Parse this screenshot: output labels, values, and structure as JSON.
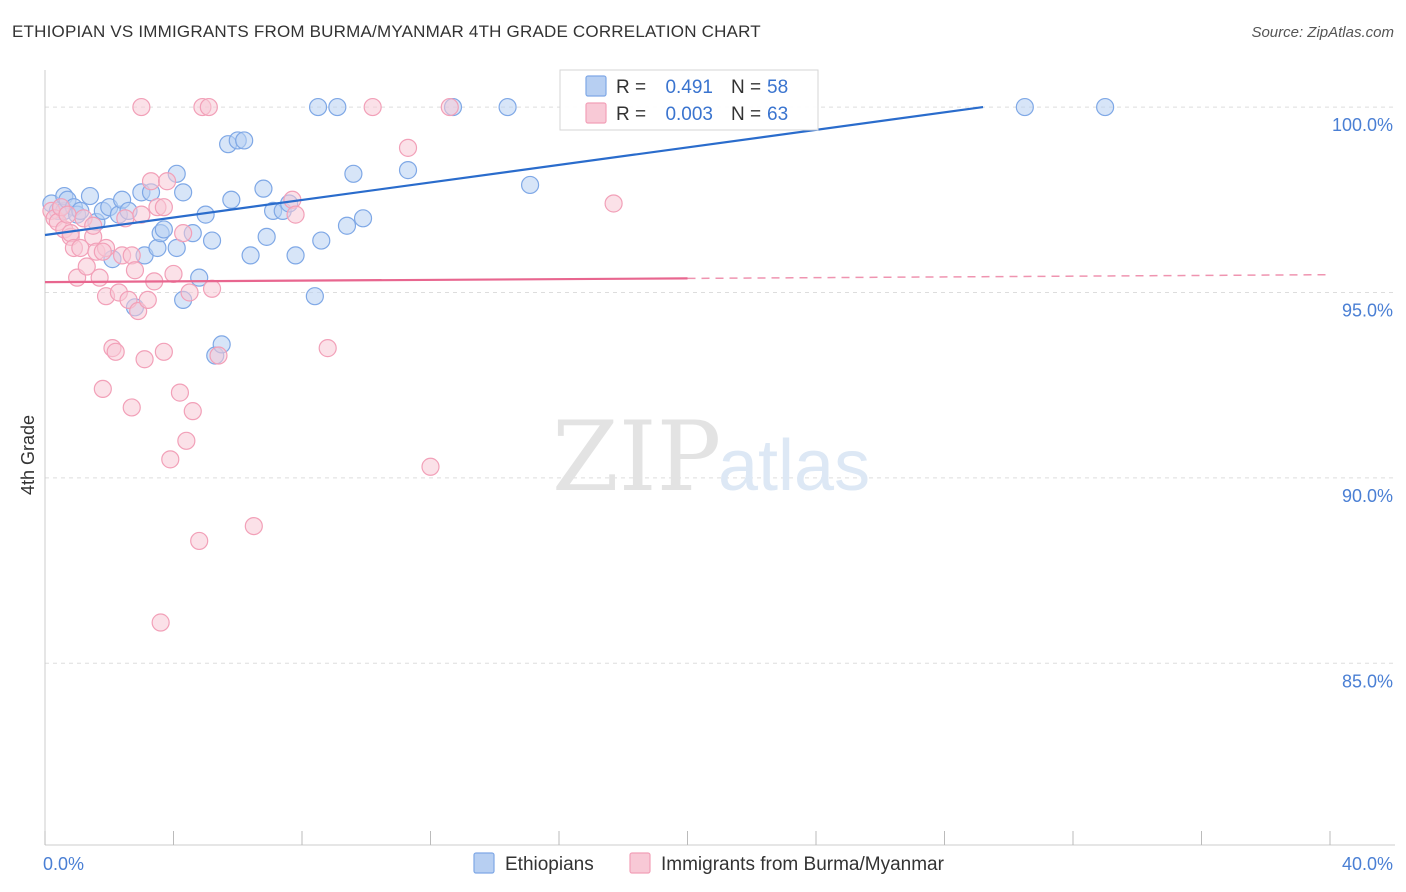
{
  "title": "ETHIOPIAN VS IMMIGRANTS FROM BURMA/MYANMAR 4TH GRADE CORRELATION CHART",
  "source": "Source: ZipAtlas.com",
  "watermark": {
    "zip": "ZIP",
    "atlas": "atlas"
  },
  "chart_data": {
    "type": "scatter",
    "xlabel": "",
    "ylabel": "4th Grade",
    "xlim": [
      0,
      40
    ],
    "ylim": [
      80.1,
      101
    ],
    "x_tick_labels": [
      "0.0%",
      "40.0%"
    ],
    "y_ticks": [
      {
        "value": 100,
        "label": "100.0%"
      },
      {
        "value": 95,
        "label": "95.0%"
      },
      {
        "value": 90,
        "label": "90.0%"
      },
      {
        "value": 85,
        "label": "85.0%"
      }
    ],
    "legend": {
      "entries": [
        {
          "r_label": "R =",
          "r_value": "0.491",
          "n_label": "N =",
          "n_value": "58"
        },
        {
          "r_label": "R =",
          "r_value": "0.003",
          "n_label": "N =",
          "n_value": "63"
        }
      ]
    },
    "series": [
      {
        "name": "Ethiopians",
        "color": "#7fa8e6",
        "fill": "#b7cff2",
        "line_color": "#2a6ccc",
        "trend": {
          "x0": 0.0,
          "y0": 96.55,
          "x1": 29.2,
          "y1": 100.0,
          "dashed_to": null
        },
        "points": [
          [
            0.2,
            97.4
          ],
          [
            0.4,
            97.2
          ],
          [
            0.5,
            97.3
          ],
          [
            0.6,
            97.2
          ],
          [
            0.6,
            97.6
          ],
          [
            0.7,
            97.5
          ],
          [
            0.9,
            97.3
          ],
          [
            1.0,
            97.1
          ],
          [
            1.1,
            97.2
          ],
          [
            1.4,
            97.6
          ],
          [
            1.6,
            96.9
          ],
          [
            1.8,
            97.2
          ],
          [
            2.0,
            97.3
          ],
          [
            2.1,
            95.9
          ],
          [
            2.3,
            97.1
          ],
          [
            2.4,
            97.5
          ],
          [
            2.6,
            97.2
          ],
          [
            2.8,
            94.6
          ],
          [
            3.0,
            97.7
          ],
          [
            3.1,
            96.0
          ],
          [
            3.3,
            97.7
          ],
          [
            3.5,
            96.2
          ],
          [
            3.6,
            96.6
          ],
          [
            3.7,
            96.7
          ],
          [
            4.1,
            98.2
          ],
          [
            4.1,
            96.2
          ],
          [
            4.3,
            97.7
          ],
          [
            4.3,
            94.8
          ],
          [
            4.6,
            96.6
          ],
          [
            4.8,
            95.4
          ],
          [
            5.0,
            97.1
          ],
          [
            5.2,
            96.4
          ],
          [
            5.3,
            93.3
          ],
          [
            5.5,
            93.6
          ],
          [
            5.7,
            99.0
          ],
          [
            5.8,
            97.5
          ],
          [
            6.0,
            99.1
          ],
          [
            6.2,
            99.1
          ],
          [
            6.4,
            96.0
          ],
          [
            6.8,
            97.8
          ],
          [
            6.9,
            96.5
          ],
          [
            7.1,
            97.2
          ],
          [
            7.4,
            97.2
          ],
          [
            7.6,
            97.4
          ],
          [
            7.8,
            96.0
          ],
          [
            8.4,
            94.9
          ],
          [
            8.6,
            96.4
          ],
          [
            8.5,
            100.0
          ],
          [
            9.1,
            100.0
          ],
          [
            9.4,
            96.8
          ],
          [
            9.6,
            98.2
          ],
          [
            9.9,
            97.0
          ],
          [
            11.3,
            98.3
          ],
          [
            12.7,
            100.0
          ],
          [
            14.4,
            100.0
          ],
          [
            15.1,
            97.9
          ],
          [
            30.5,
            100.0
          ],
          [
            33.0,
            100.0
          ]
        ]
      },
      {
        "name": "Immigrants from Burma/Myanmar",
        "color": "#f2a0b8",
        "fill": "#f8c9d6",
        "line_color": "#e8668f",
        "trend": {
          "x0": 0.0,
          "y0": 95.28,
          "x1": 20.0,
          "y1": 95.38,
          "dashed_to": {
            "x": 40.0,
            "y": 95.48
          }
        },
        "points": [
          [
            0.2,
            97.2
          ],
          [
            0.3,
            97.0
          ],
          [
            0.4,
            96.9
          ],
          [
            0.5,
            97.3
          ],
          [
            0.6,
            96.7
          ],
          [
            0.7,
            97.1
          ],
          [
            0.8,
            96.5
          ],
          [
            0.8,
            96.6
          ],
          [
            0.9,
            96.2
          ],
          [
            1.0,
            95.4
          ],
          [
            1.1,
            96.2
          ],
          [
            1.2,
            97.0
          ],
          [
            1.3,
            95.7
          ],
          [
            1.5,
            96.5
          ],
          [
            1.5,
            96.8
          ],
          [
            1.6,
            96.1
          ],
          [
            1.7,
            95.4
          ],
          [
            1.8,
            92.4
          ],
          [
            1.9,
            96.2
          ],
          [
            1.9,
            94.9
          ],
          [
            2.1,
            93.5
          ],
          [
            2.2,
            93.4
          ],
          [
            2.3,
            95.0
          ],
          [
            2.4,
            96.0
          ],
          [
            2.5,
            97.0
          ],
          [
            2.6,
            94.8
          ],
          [
            2.7,
            96.0
          ],
          [
            2.7,
            91.9
          ],
          [
            2.8,
            95.6
          ],
          [
            2.9,
            94.5
          ],
          [
            3.0,
            97.1
          ],
          [
            3.1,
            93.2
          ],
          [
            3.2,
            94.8
          ],
          [
            3.3,
            98.0
          ],
          [
            3.4,
            95.3
          ],
          [
            3.5,
            97.3
          ],
          [
            3.6,
            86.1
          ],
          [
            3.7,
            97.3
          ],
          [
            3.7,
            93.4
          ],
          [
            3.8,
            98.0
          ],
          [
            3.9,
            90.5
          ],
          [
            4.0,
            95.5
          ],
          [
            4.2,
            92.3
          ],
          [
            4.3,
            96.6
          ],
          [
            4.4,
            91.0
          ],
          [
            4.5,
            95.0
          ],
          [
            4.6,
            91.8
          ],
          [
            4.8,
            88.3
          ],
          [
            5.2,
            95.1
          ],
          [
            5.4,
            93.3
          ],
          [
            6.5,
            88.7
          ],
          [
            7.7,
            97.5
          ],
          [
            7.8,
            97.1
          ],
          [
            8.8,
            93.5
          ],
          [
            10.2,
            100.0
          ],
          [
            11.3,
            98.9
          ],
          [
            12.0,
            90.3
          ],
          [
            12.6,
            100.0
          ],
          [
            17.7,
            97.4
          ],
          [
            3.0,
            100.0
          ],
          [
            4.9,
            100.0
          ],
          [
            5.1,
            100.0
          ],
          [
            1.8,
            96.1
          ]
        ]
      }
    ]
  },
  "bottom_legend": {
    "items": [
      {
        "label": "Ethiopians",
        "color": "#b7cff2",
        "border": "#7fa8e6"
      },
      {
        "label": "Immigrants from Burma/Myanmar",
        "color": "#f8c9d6",
        "border": "#f2a0b8"
      }
    ]
  }
}
